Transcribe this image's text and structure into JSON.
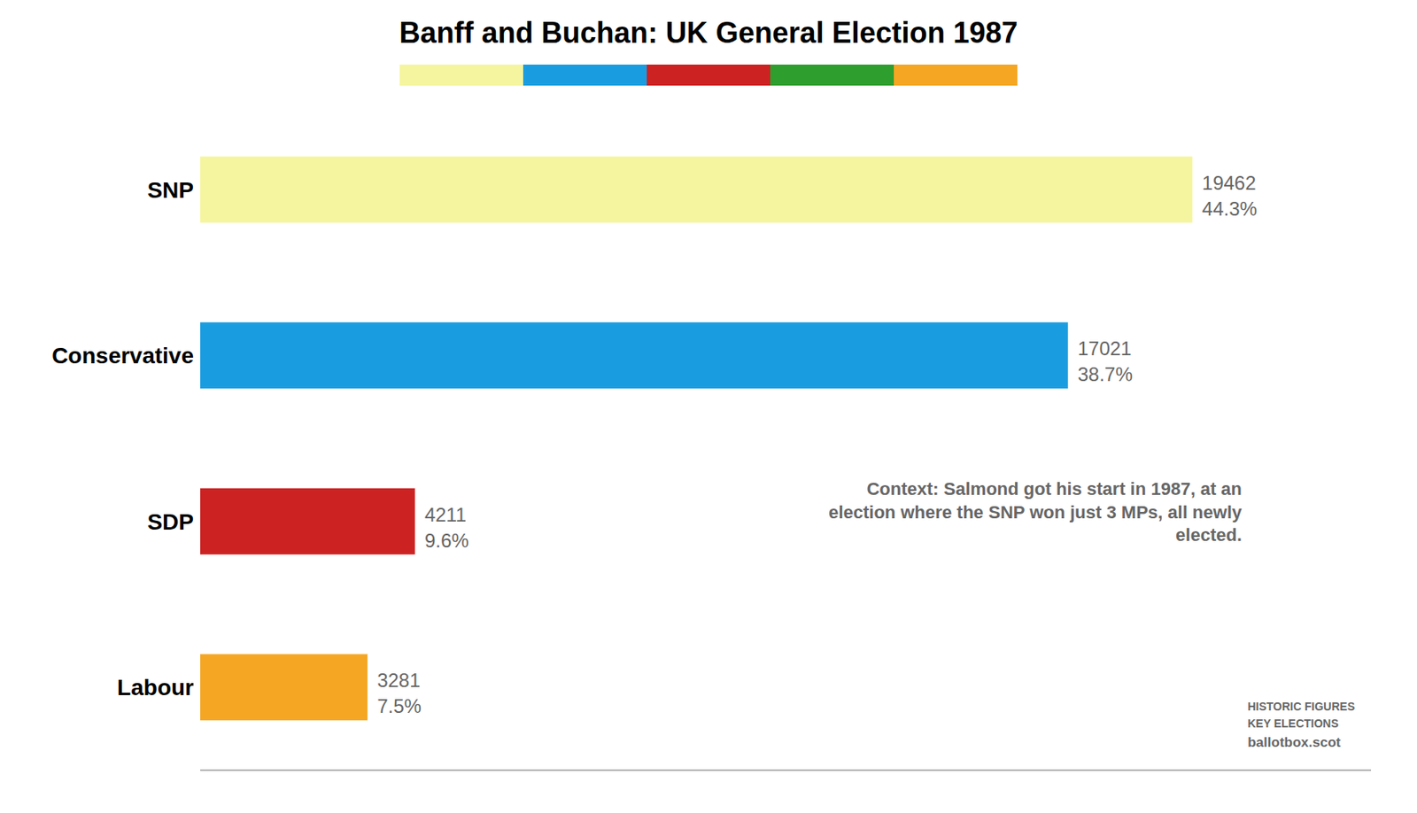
{
  "chart_data": {
    "type": "bar",
    "orientation": "horizontal",
    "title": "Banff and Buchan: UK General Election 1987",
    "categories": [
      "SNP",
      "Conservative",
      "SDP",
      "Labour"
    ],
    "values": [
      19462,
      17021,
      4211,
      3281
    ],
    "colors": [
      "#f5f5a0",
      "#1a9de0",
      "#cc2222",
      "#f5a623"
    ],
    "data_labels": true,
    "percentage_labels": [
      "44.3%",
      "38.7%",
      "9.6%",
      "7.5%"
    ],
    "xlim": [
      0,
      22965.16
    ],
    "tick_labels": "y",
    "grid": false,
    "strip_colors": [
      "#f5f5a0",
      "#1a9de0",
      "#cc2222",
      "#2e9e2e",
      "#f5a623"
    ],
    "annotations": [
      "Context: Salmond got his start in 1987, at an\nelection where the SNP won just 3 MPs, all newly\nelected.",
      "HISTORIC FIGURES",
      "KEY ELECTIONS",
      "ballotbox.scot"
    ]
  }
}
